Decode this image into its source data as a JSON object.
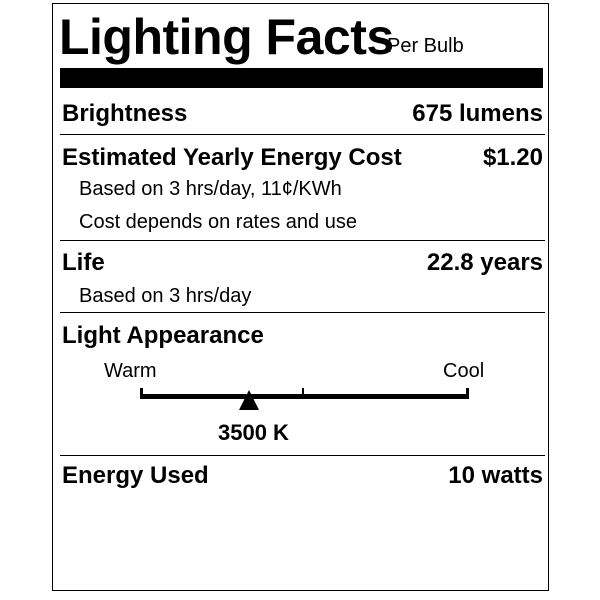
{
  "title": "Lighting Facts",
  "subtitle": "Per Bulb",
  "brightness": {
    "label": "Brightness",
    "value": "675 lumens"
  },
  "energy_cost": {
    "label": "Estimated Yearly Energy Cost",
    "value": "$1.20",
    "note1": "Based on 3 hrs/day, 11¢/KWh",
    "note2": "Cost depends on rates and use"
  },
  "life": {
    "label": "Life",
    "value": "22.8 years",
    "note": "Based on 3 hrs/day"
  },
  "light_appearance": {
    "label": "Light Appearance",
    "warm_label": "Warm",
    "cool_label": "Cool",
    "value": "3500 K",
    "scale_position": 0.33
  },
  "energy_used": {
    "label": "Energy Used",
    "value": "10 watts"
  }
}
